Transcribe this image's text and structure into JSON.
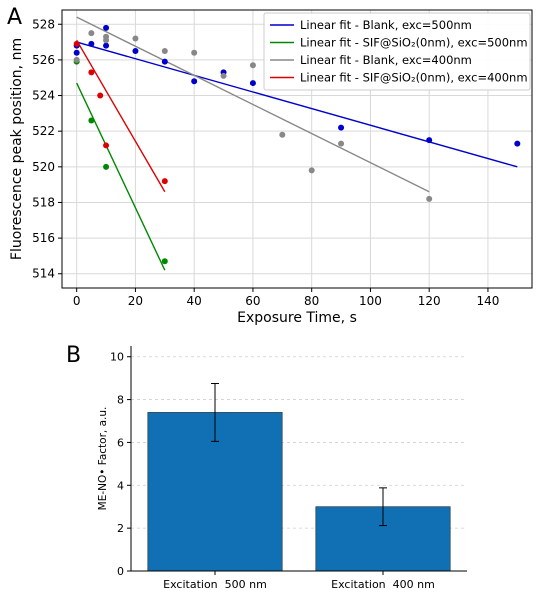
{
  "panels": {
    "a_letter": "A",
    "b_letter": "B"
  },
  "chart_data": [
    {
      "type": "scatter",
      "xlabel": "Exposure Time, s",
      "ylabel": "Fluorescence peak position, nm",
      "xlim": [
        -5,
        155
      ],
      "ylim": [
        513.2,
        528.8
      ],
      "xticks": [
        0,
        20,
        40,
        60,
        80,
        100,
        120,
        140
      ],
      "yticks": [
        514,
        516,
        518,
        520,
        522,
        524,
        526,
        528
      ],
      "grid": true,
      "legend_position": "top-right",
      "series": [
        {
          "name": "Linear fit - Blank, exc=500nm",
          "color": "#0000cc",
          "points": [
            [
              0,
              526.8
            ],
            [
              0,
              526.4
            ],
            [
              5,
              526.9
            ],
            [
              10,
              527.8
            ],
            [
              10,
              526.8
            ],
            [
              20,
              526.5
            ],
            [
              30,
              525.9
            ],
            [
              40,
              524.8
            ],
            [
              50,
              525.3
            ],
            [
              60,
              524.7
            ],
            [
              90,
              522.2
            ],
            [
              120,
              521.5
            ],
            [
              150,
              521.3
            ]
          ],
          "fit": [
            [
              0,
              527.0
            ],
            [
              150,
              520.0
            ]
          ]
        },
        {
          "name": "Linear fit - SIF@SiO₂(0nm), exc=500nm",
          "color": "#008800",
          "points": [
            [
              0,
              525.9
            ],
            [
              5,
              522.6
            ],
            [
              10,
              520.0
            ],
            [
              30,
              514.7
            ]
          ],
          "fit": [
            [
              0,
              524.7
            ],
            [
              30,
              514.2
            ]
          ]
        },
        {
          "name": "Linear fit - Blank, exc=400nm",
          "color": "#888888",
          "points": [
            [
              0,
              526.0
            ],
            [
              5,
              527.5
            ],
            [
              10,
              527.3
            ],
            [
              10,
              527.1
            ],
            [
              20,
              527.2
            ],
            [
              30,
              526.5
            ],
            [
              40,
              526.4
            ],
            [
              50,
              525.1
            ],
            [
              60,
              525.7
            ],
            [
              70,
              521.8
            ],
            [
              80,
              519.8
            ],
            [
              90,
              521.3
            ],
            [
              120,
              518.2
            ]
          ],
          "fit": [
            [
              0,
              528.4
            ],
            [
              120,
              518.6
            ]
          ]
        },
        {
          "name": "Linear fit - SIF@SiO₂(0nm), exc=400nm",
          "color": "#dd0000",
          "points": [
            [
              0,
              526.9
            ],
            [
              5,
              525.3
            ],
            [
              8,
              524.0
            ],
            [
              10,
              521.2
            ],
            [
              30,
              519.2
            ]
          ],
          "fit": [
            [
              0,
              527.1
            ],
            [
              30,
              518.6
            ]
          ]
        }
      ]
    },
    {
      "type": "bar",
      "ylabel": "ME-NO• Factor, a.u.",
      "xlabel": "",
      "ylim": [
        0,
        10.5
      ],
      "yticks": [
        0,
        2,
        4,
        6,
        8,
        10
      ],
      "categories": [
        "Excitation  500 nm",
        "Excitation  400 nm"
      ],
      "values": [
        7.4,
        3.0
      ],
      "errors": [
        1.35,
        0.88
      ],
      "bar_color": "#1170b3",
      "grid": "horizontal-dashed"
    }
  ]
}
